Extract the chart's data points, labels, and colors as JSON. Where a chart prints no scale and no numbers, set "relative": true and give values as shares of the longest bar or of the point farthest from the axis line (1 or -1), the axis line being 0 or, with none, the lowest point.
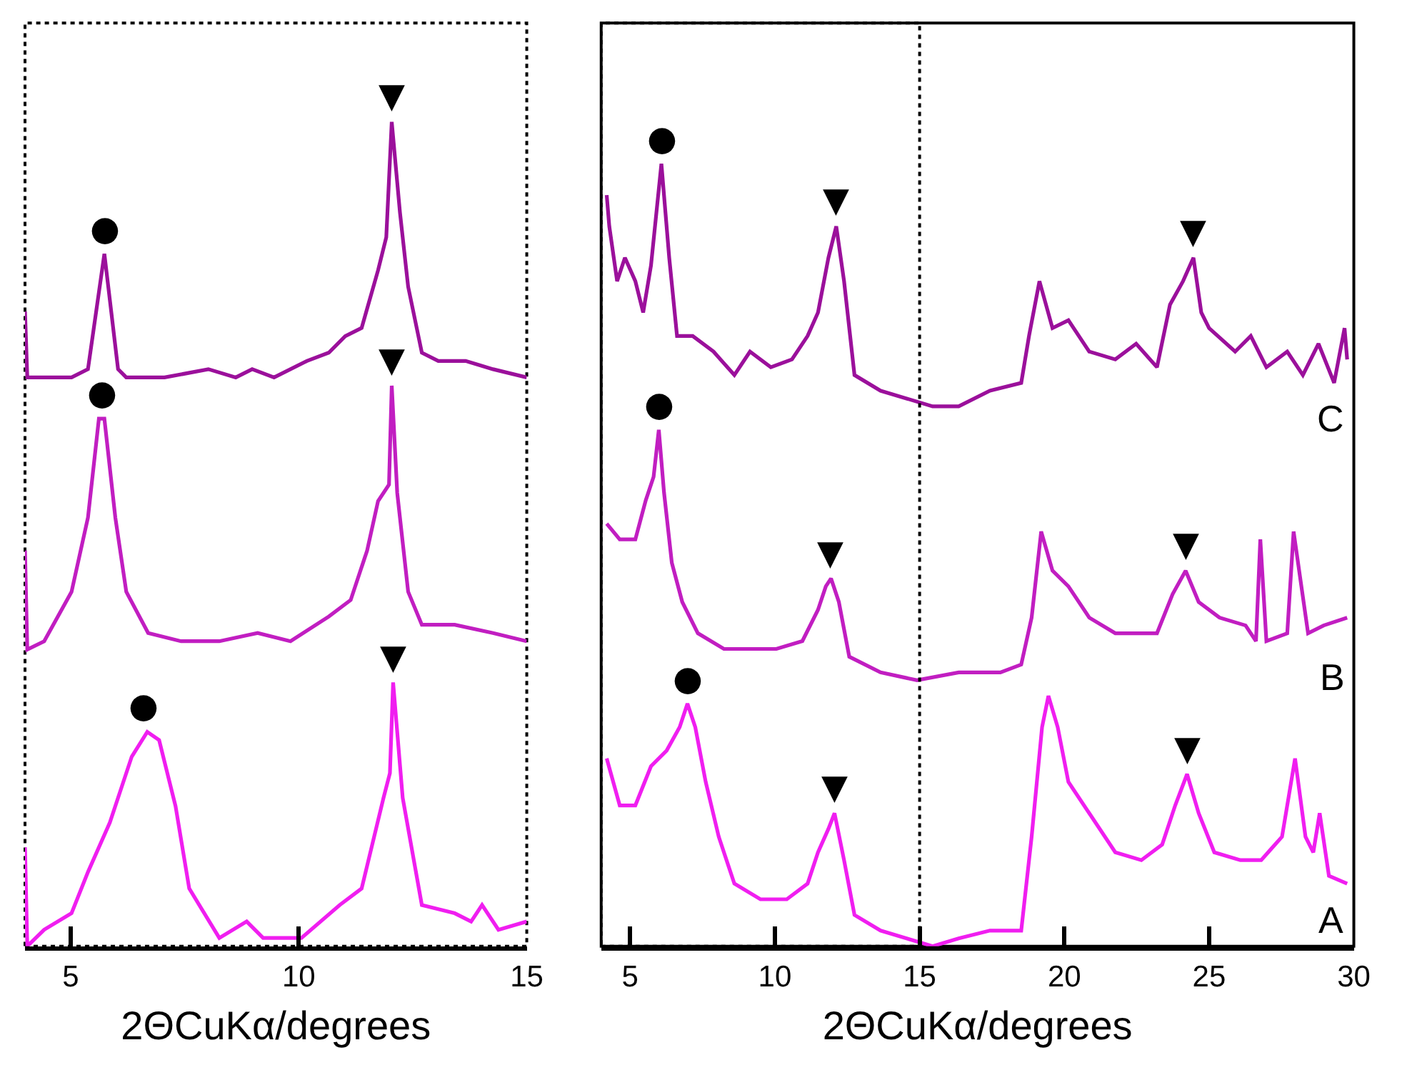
{
  "chart_data": [
    {
      "type": "line",
      "relative": true,
      "xlabel": "2ΘCuKα/degrees",
      "xlim": [
        4,
        15
      ],
      "xticks": [
        5,
        10,
        15
      ],
      "tick_labels": "x",
      "legend": false,
      "grid": false,
      "marker": "none",
      "line_style": "solid",
      "series": [
        {
          "color": "#9b109b",
          "x": [
            4.0,
            4.05,
            4.44,
            5.02,
            5.38,
            5.74,
            6.04,
            6.22,
            7.06,
            8.02,
            8.62,
            8.98,
            9.46,
            10.18,
            10.66,
            11.02,
            11.38,
            11.74,
            11.92,
            12.04,
            12.22,
            12.4,
            12.7,
            13.06,
            13.66,
            14.26,
            15.0
          ],
          "values": [
            0.77,
            0.69,
            0.69,
            0.69,
            0.7,
            0.84,
            0.7,
            0.69,
            0.69,
            0.7,
            0.69,
            0.7,
            0.69,
            0.71,
            0.72,
            0.74,
            0.75,
            0.82,
            0.86,
            1.0,
            0.89,
            0.8,
            0.72,
            0.71,
            0.71,
            0.7,
            0.69
          ]
        },
        {
          "color": "#c11ec1",
          "x": [
            4.0,
            4.05,
            4.42,
            5.02,
            5.38,
            5.62,
            5.74,
            5.98,
            6.22,
            6.7,
            7.42,
            8.26,
            9.1,
            9.82,
            10.66,
            11.14,
            11.5,
            11.74,
            11.98,
            12.04,
            12.16,
            12.4,
            12.7,
            13.42,
            14.26,
            15.0
          ],
          "values": [
            0.48,
            0.36,
            0.37,
            0.43,
            0.52,
            0.64,
            0.64,
            0.52,
            0.43,
            0.38,
            0.37,
            0.37,
            0.38,
            0.37,
            0.4,
            0.42,
            0.48,
            0.54,
            0.56,
            0.68,
            0.55,
            0.43,
            0.39,
            0.39,
            0.38,
            0.37
          ]
        },
        {
          "color": "#f01ef0",
          "x": [
            4.0,
            4.05,
            4.42,
            5.02,
            5.38,
            5.86,
            6.34,
            6.68,
            6.94,
            7.3,
            7.6,
            8.26,
            8.86,
            9.22,
            10.06,
            10.9,
            11.38,
            11.86,
            12.0,
            12.07,
            12.28,
            12.7,
            13.42,
            13.78,
            14.02,
            14.38,
            15.0
          ],
          "values": [
            0.12,
            0.0,
            0.02,
            0.04,
            0.09,
            0.15,
            0.23,
            0.26,
            0.25,
            0.17,
            0.07,
            0.01,
            0.03,
            0.01,
            0.01,
            0.05,
            0.07,
            0.18,
            0.21,
            0.32,
            0.18,
            0.05,
            0.04,
            0.03,
            0.05,
            0.02,
            0.03
          ]
        }
      ],
      "annotations": [
        {
          "text": "●",
          "x": 5.74,
          "y": 0.84
        },
        {
          "text": "●",
          "x": 5.7,
          "y": 0.64
        },
        {
          "text": "●",
          "x": 6.6,
          "y": 0.26
        },
        {
          "text": "▼",
          "x": 12.04,
          "y": 1.0
        },
        {
          "text": "▼",
          "x": 12.04,
          "y": 0.68
        },
        {
          "text": "▼",
          "x": 12.07,
          "y": 0.32
        }
      ]
    },
    {
      "type": "line",
      "relative": true,
      "xlabel": "2ΘCuKα/degrees",
      "xlim": [
        4,
        30
      ],
      "xticks": [
        5,
        10,
        15,
        20,
        25,
        30
      ],
      "tick_labels": "x",
      "legend": false,
      "grid": false,
      "marker": "none",
      "line_style": "solid",
      "series": [
        {
          "name": "C",
          "color": "#9b109b",
          "x": [
            4.19,
            4.28,
            4.55,
            4.82,
            5.18,
            5.45,
            5.72,
            6.08,
            6.35,
            6.62,
            7.16,
            7.88,
            8.6,
            9.14,
            9.86,
            10.59,
            11.13,
            11.49,
            11.85,
            12.12,
            12.39,
            12.75,
            13.65,
            14.55,
            15.45,
            16.35,
            17.43,
            18.51,
            18.78,
            19.14,
            19.59,
            20.14,
            20.86,
            21.76,
            22.48,
            23.2,
            23.65,
            24.1,
            24.46,
            24.73,
            25.0,
            25.9,
            26.44,
            26.98,
            27.7,
            28.24,
            28.78,
            29.32,
            29.68,
            29.77
          ],
          "values": [
            0.96,
            0.92,
            0.85,
            0.88,
            0.85,
            0.81,
            0.87,
            1.0,
            0.88,
            0.78,
            0.78,
            0.76,
            0.73,
            0.76,
            0.74,
            0.75,
            0.78,
            0.81,
            0.88,
            0.92,
            0.85,
            0.73,
            0.71,
            0.7,
            0.69,
            0.69,
            0.71,
            0.72,
            0.78,
            0.85,
            0.79,
            0.8,
            0.76,
            0.75,
            0.77,
            0.74,
            0.82,
            0.85,
            0.88,
            0.81,
            0.79,
            0.76,
            0.78,
            0.74,
            0.76,
            0.73,
            0.77,
            0.72,
            0.79,
            0.75
          ]
        },
        {
          "name": "B",
          "color": "#c11ec1",
          "x": [
            4.19,
            4.64,
            5.18,
            5.54,
            5.81,
            5.99,
            6.17,
            6.44,
            6.8,
            7.34,
            8.24,
            9.14,
            10.05,
            10.95,
            11.49,
            11.76,
            11.94,
            12.21,
            12.57,
            13.65,
            14.91,
            16.35,
            17.79,
            18.51,
            18.87,
            19.2,
            19.59,
            20.14,
            20.86,
            21.76,
            22.66,
            23.2,
            23.74,
            24.19,
            24.64,
            25.36,
            26.26,
            26.62,
            26.77,
            26.98,
            27.7,
            27.92,
            28.15,
            28.42,
            28.96,
            29.77
          ],
          "values": [
            0.54,
            0.52,
            0.52,
            0.57,
            0.6,
            0.66,
            0.58,
            0.49,
            0.44,
            0.4,
            0.38,
            0.38,
            0.38,
            0.39,
            0.43,
            0.46,
            0.47,
            0.44,
            0.37,
            0.35,
            0.34,
            0.35,
            0.35,
            0.36,
            0.42,
            0.53,
            0.48,
            0.46,
            0.42,
            0.4,
            0.4,
            0.4,
            0.45,
            0.48,
            0.44,
            0.42,
            0.41,
            0.39,
            0.52,
            0.39,
            0.4,
            0.53,
            0.47,
            0.4,
            0.41,
            0.42
          ]
        },
        {
          "name": "A",
          "color": "#f01ef0",
          "x": [
            4.19,
            4.64,
            5.18,
            5.72,
            6.26,
            6.71,
            6.98,
            7.25,
            7.61,
            8.06,
            8.6,
            9.5,
            10.41,
            11.13,
            11.49,
            11.85,
            12.06,
            12.39,
            12.75,
            13.65,
            14.55,
            15.45,
            16.35,
            17.43,
            18.51,
            18.87,
            19.23,
            19.45,
            19.77,
            20.14,
            20.86,
            21.76,
            22.66,
            23.38,
            23.83,
            24.24,
            24.64,
            25.18,
            26.08,
            26.8,
            27.52,
            27.97,
            28.33,
            28.6,
            28.82,
            29.14,
            29.77
          ],
          "values": [
            0.24,
            0.18,
            0.18,
            0.23,
            0.25,
            0.28,
            0.31,
            0.28,
            0.21,
            0.14,
            0.08,
            0.06,
            0.06,
            0.08,
            0.12,
            0.15,
            0.17,
            0.11,
            0.04,
            0.02,
            0.01,
            0.0,
            0.01,
            0.02,
            0.02,
            0.14,
            0.28,
            0.32,
            0.28,
            0.21,
            0.17,
            0.12,
            0.11,
            0.13,
            0.18,
            0.22,
            0.17,
            0.12,
            0.11,
            0.11,
            0.14,
            0.24,
            0.14,
            0.12,
            0.17,
            0.09,
            0.08
          ]
        }
      ],
      "annotations": [
        {
          "text": "●",
          "x": 6.08,
          "y": 1.0
        },
        {
          "text": "●",
          "x": 5.99,
          "y": 0.66
        },
        {
          "text": "●",
          "x": 6.98,
          "y": 0.31
        },
        {
          "text": "▼",
          "x": 12.12,
          "y": 0.92
        },
        {
          "text": "▼",
          "x": 24.46,
          "y": 0.88
        },
        {
          "text": "▼",
          "x": 11.94,
          "y": 0.47
        },
        {
          "text": "▼",
          "x": 24.19,
          "y": 0.48
        },
        {
          "text": "▼",
          "x": 12.06,
          "y": 0.17
        },
        {
          "text": "▼",
          "x": 24.24,
          "y": 0.22
        }
      ]
    }
  ]
}
